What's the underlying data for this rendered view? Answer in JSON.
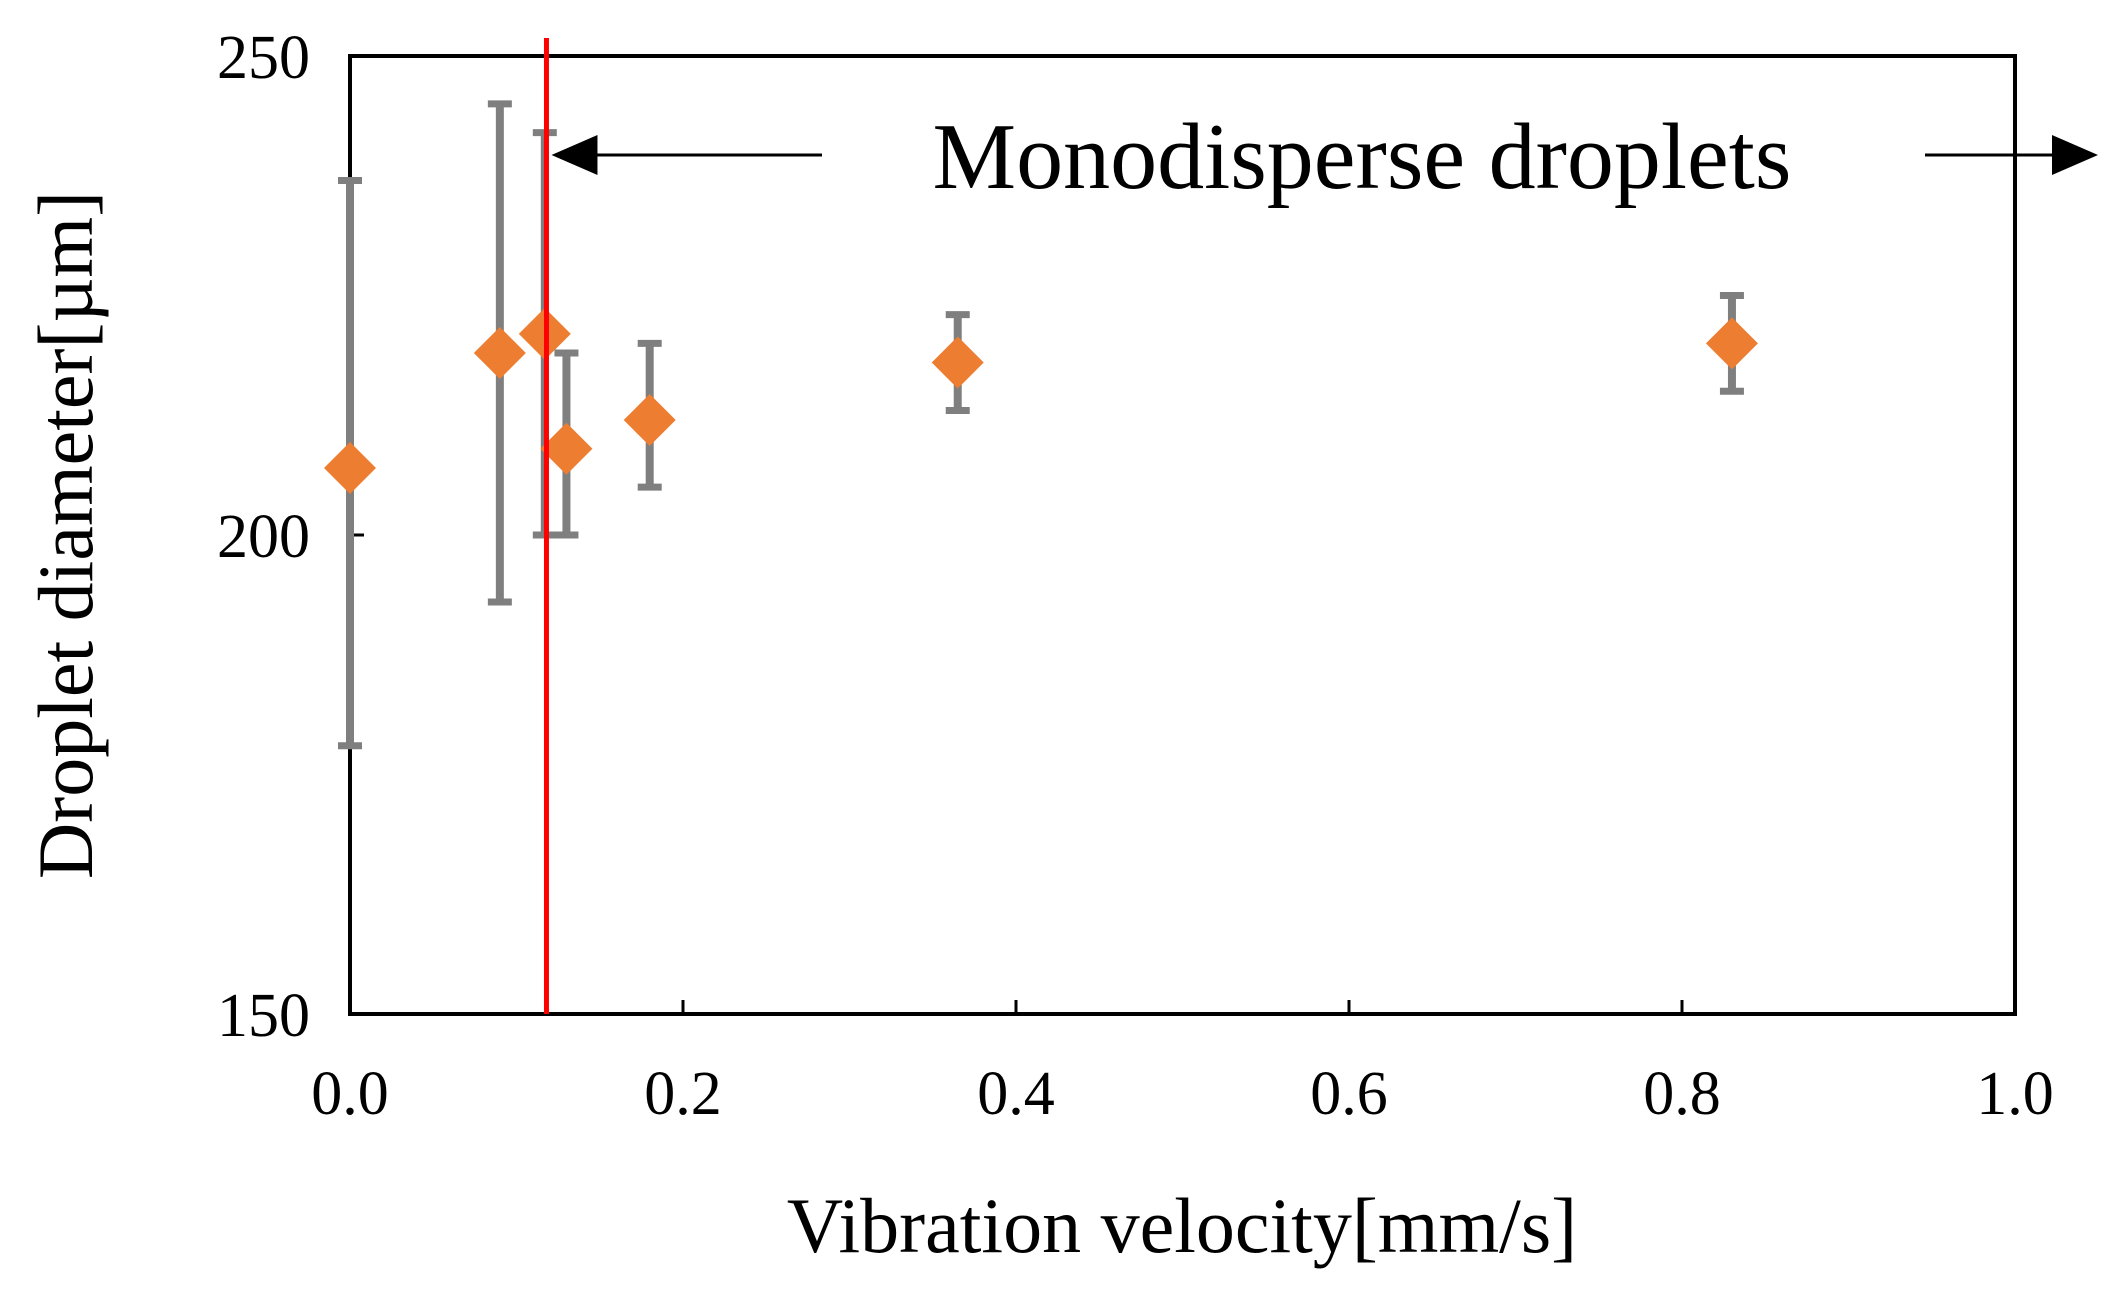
{
  "chart_data": {
    "type": "scatter",
    "title": "",
    "xlabel": "Vibration velocity[mm/s]",
    "ylabel": "Droplet diameter[µm]",
    "xlim": [
      0.0,
      1.0
    ],
    "ylim": [
      150,
      250
    ],
    "x_ticks": [
      "0.0",
      "0.2",
      "0.4",
      "0.6",
      "0.8",
      "1.0"
    ],
    "y_ticks": [
      "150",
      "200",
      "250"
    ],
    "grid": false,
    "series": [
      {
        "name": "Droplet diameter",
        "marker": "diamond",
        "color": "#ED7D31",
        "error_color": "#7F7F7F",
        "points": [
          {
            "x": 0.0,
            "y": 207,
            "err_low": 178,
            "err_high": 237
          },
          {
            "x": 0.09,
            "y": 219,
            "err_low": 193,
            "err_high": 245
          },
          {
            "x": 0.117,
            "y": 221,
            "err_low": 200,
            "err_high": 242
          },
          {
            "x": 0.13,
            "y": 209,
            "err_low": 200,
            "err_high": 219
          },
          {
            "x": 0.18,
            "y": 212,
            "err_low": 205,
            "err_high": 220
          },
          {
            "x": 0.365,
            "y": 218,
            "err_low": 213,
            "err_high": 223
          },
          {
            "x": 0.83,
            "y": 220,
            "err_low": 215,
            "err_high": 225
          }
        ]
      }
    ],
    "threshold_line": {
      "x": 0.118,
      "color": "#FF0000"
    },
    "annotation": {
      "text": "Monodisperse droplets",
      "arrow_left_to_x": 0.118,
      "arrow_right_beyond": true
    }
  }
}
